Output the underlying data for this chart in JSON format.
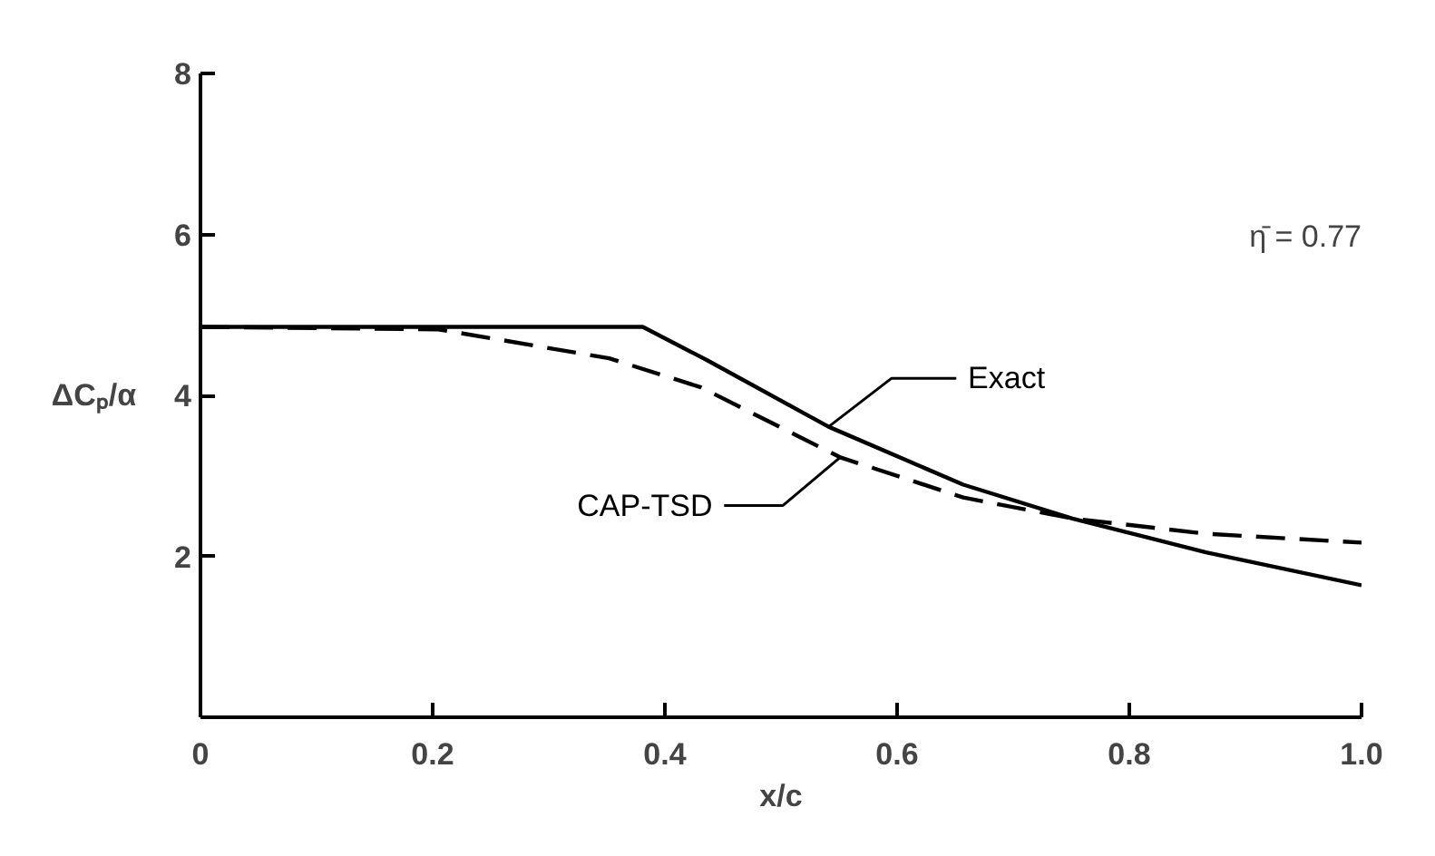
{
  "chart_data": {
    "type": "line",
    "xlabel": "x/c",
    "ylabel": "ΔCₚ/α",
    "xlim": [
      0,
      1
    ],
    "ylim": [
      0,
      8
    ],
    "xticks": [
      0,
      0.2,
      0.4,
      0.6,
      0.8,
      {
        "value": 1,
        "label": "1.0"
      }
    ],
    "yticks": [
      2,
      4,
      6,
      8
    ],
    "grid": false,
    "series": [
      {
        "name": "Exact",
        "color": "#000000",
        "line_style": "solid",
        "x": [
          0,
          0.2,
          0.381,
          0.436,
          0.541,
          0.657,
          0.751,
          0.866,
          1.0
        ],
        "values": [
          4.85,
          4.85,
          4.85,
          4.44,
          3.61,
          2.89,
          2.47,
          2.05,
          1.64
        ]
      },
      {
        "name": "CAP-TSD",
        "color": "#000000",
        "line_style": "dashed",
        "x": [
          0,
          0.205,
          0.352,
          0.431,
          0.551,
          0.657,
          0.751,
          0.866,
          1.0
        ],
        "values": [
          4.85,
          4.82,
          4.46,
          4.1,
          3.23,
          2.73,
          2.47,
          2.28,
          2.17
        ]
      }
    ],
    "annotations": [
      "η̄ = 0.77"
    ]
  }
}
